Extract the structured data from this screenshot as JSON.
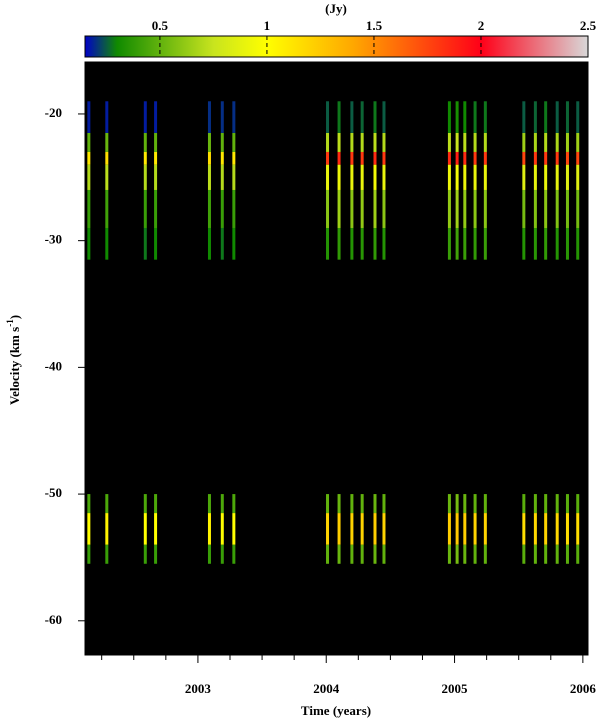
{
  "chart_data": {
    "type": "heatmap",
    "colorbar_label": "(Jy)",
    "clim": [
      0.15,
      2.5
    ],
    "cticks": [
      0.5,
      1,
      1.5,
      2,
      2.5
    ],
    "colormap": [
      {
        "value": 0.15,
        "color": "#0000c8"
      },
      {
        "value": 0.3,
        "color": "#108a00"
      },
      {
        "value": 0.75,
        "color": "#c8e41e"
      },
      {
        "value": 1.0,
        "color": "#ffff00"
      },
      {
        "value": 1.4,
        "color": "#ffa800"
      },
      {
        "value": 2.0,
        "color": "#ff0018"
      },
      {
        "value": 2.5,
        "color": "#d8d8d8"
      }
    ],
    "x_label": "Time (years)",
    "y_label": [
      "Velocity (km s",
      "-1",
      ")"
    ],
    "xlim": [
      2002.12,
      2006.04
    ],
    "xticks": [
      2003,
      2004,
      2005,
      2006
    ],
    "xminor": [
      2002.25,
      2002.5,
      2002.75,
      2003.25,
      2003.5,
      2003.75,
      2004.25,
      2004.5,
      2004.75,
      2005.25,
      2005.5,
      2005.75
    ],
    "ylim": [
      -62.7,
      -15.9
    ],
    "yticks": [
      -20,
      -30,
      -40,
      -50,
      -60
    ],
    "background": "#000000",
    "epochs": [
      2002.15,
      2002.29,
      2002.59,
      2002.67,
      2003.09,
      2003.19,
      2003.28,
      2004.01,
      2004.1,
      2004.2,
      2004.28,
      2004.38,
      2004.45,
      2004.96,
      2005.02,
      2005.08,
      2005.16,
      2005.24,
      2005.54,
      2005.63,
      2005.71,
      2005.8,
      2005.88,
      2005.96
    ],
    "bands": [
      {
        "vmin": -31.5,
        "vmax": -29,
        "values": [
          0.3,
          0.3,
          0.28,
          0.3,
          0.3,
          0.28,
          0.3,
          0.35,
          0.38,
          0.35,
          0.36,
          0.38,
          0.35,
          0.4,
          0.42,
          0.4,
          0.38,
          0.4,
          0.35,
          0.36,
          0.38,
          0.35,
          0.36,
          0.35
        ]
      },
      {
        "vmin": -29,
        "vmax": -26,
        "values": [
          0.4,
          0.42,
          0.4,
          0.4,
          0.42,
          0.4,
          0.4,
          0.6,
          0.65,
          0.6,
          0.62,
          0.65,
          0.6,
          0.62,
          0.65,
          0.62,
          0.6,
          0.6,
          0.55,
          0.58,
          0.6,
          0.58,
          0.55,
          0.55
        ]
      },
      {
        "vmin": -26,
        "vmax": -24,
        "values": [
          0.7,
          0.72,
          0.7,
          0.7,
          0.72,
          0.7,
          0.7,
          0.9,
          0.92,
          0.9,
          0.9,
          0.95,
          0.9,
          0.92,
          0.95,
          0.92,
          0.9,
          0.9,
          0.85,
          0.88,
          0.9,
          0.88,
          0.85,
          0.85
        ]
      },
      {
        "vmin": -24,
        "vmax": -23,
        "values": [
          1.1,
          1.15,
          1.1,
          1.1,
          1.15,
          1.1,
          1.1,
          1.8,
          1.85,
          1.8,
          1.8,
          1.85,
          1.8,
          1.85,
          1.9,
          1.85,
          1.8,
          1.8,
          1.75,
          1.8,
          1.8,
          1.8,
          1.75,
          1.75
        ]
      },
      {
        "vmin": -23,
        "vmax": -21.5,
        "values": [
          0.5,
          0.52,
          0.5,
          0.5,
          0.52,
          0.5,
          0.5,
          0.7,
          0.72,
          0.7,
          0.7,
          0.72,
          0.7,
          0.72,
          0.75,
          0.72,
          0.7,
          0.7,
          0.65,
          0.68,
          0.7,
          0.68,
          0.65,
          0.65
        ]
      },
      {
        "vmin": -21.5,
        "vmax": -19,
        "values": [
          0.18,
          0.18,
          0.18,
          0.18,
          0.2,
          0.2,
          0.2,
          0.25,
          0.28,
          0.25,
          0.26,
          0.28,
          0.25,
          0.3,
          0.32,
          0.3,
          0.28,
          0.28,
          0.25,
          0.26,
          0.28,
          0.25,
          0.26,
          0.25
        ]
      },
      {
        "vmin": -51.5,
        "vmax": -50,
        "values": [
          0.45,
          0.45,
          0.45,
          0.45,
          0.45,
          0.45,
          0.45,
          0.5,
          0.52,
          0.5,
          0.5,
          0.52,
          0.5,
          0.52,
          0.55,
          0.52,
          0.5,
          0.5,
          0.48,
          0.5,
          0.5,
          0.5,
          0.48,
          0.48
        ]
      },
      {
        "vmin": -54,
        "vmax": -51.5,
        "values": [
          1.0,
          1.05,
          1.0,
          1.0,
          1.05,
          1.0,
          1.0,
          1.2,
          1.22,
          1.2,
          1.2,
          1.22,
          1.2,
          1.22,
          1.25,
          1.22,
          1.2,
          1.2,
          1.15,
          1.18,
          1.2,
          1.18,
          1.15,
          1.15
        ]
      },
      {
        "vmin": -55.5,
        "vmax": -54,
        "values": [
          0.4,
          0.4,
          0.4,
          0.4,
          0.4,
          0.4,
          0.4,
          0.5,
          0.52,
          0.5,
          0.5,
          0.52,
          0.5,
          0.52,
          0.55,
          0.52,
          0.5,
          0.5,
          0.48,
          0.5,
          0.5,
          0.5,
          0.48,
          0.48
        ]
      }
    ]
  }
}
